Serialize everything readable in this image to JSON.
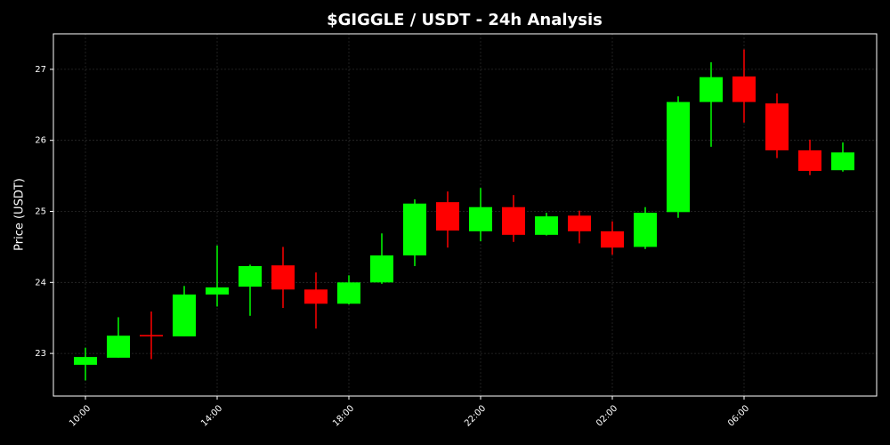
{
  "chart_data": {
    "type": "candlestick",
    "title": "$GIGGLE / USDT - 24h Analysis",
    "ylabel": "Price (USDT)",
    "categories": [
      "10:00",
      null,
      null,
      null,
      "14:00",
      null,
      null,
      null,
      "18:00",
      null,
      null,
      null,
      "22:00",
      null,
      null,
      null,
      "02:00",
      null,
      null,
      null,
      "06:00",
      null,
      null,
      null
    ],
    "open": [
      22.84,
      22.94,
      23.26,
      23.24,
      23.83,
      23.94,
      24.24,
      23.9,
      23.7,
      24.0,
      24.38,
      25.13,
      24.72,
      25.06,
      24.67,
      24.94,
      24.72,
      24.5,
      24.99,
      26.54,
      26.9,
      26.52,
      25.86,
      25.58
    ],
    "high": [
      23.08,
      23.51,
      23.59,
      23.95,
      24.52,
      24.25,
      24.5,
      24.14,
      24.1,
      24.69,
      25.17,
      25.28,
      25.33,
      25.23,
      24.98,
      25.01,
      24.86,
      25.06,
      26.62,
      27.1,
      27.28,
      26.66,
      26.01,
      25.97
    ],
    "low": [
      22.62,
      22.94,
      22.92,
      23.24,
      23.66,
      23.53,
      23.64,
      23.35,
      23.69,
      23.98,
      24.23,
      24.49,
      24.58,
      24.57,
      24.66,
      24.55,
      24.39,
      24.47,
      24.91,
      25.91,
      26.25,
      25.75,
      25.51,
      25.56
    ],
    "close": [
      22.95,
      23.25,
      23.24,
      23.83,
      23.93,
      24.23,
      23.9,
      23.7,
      24.0,
      24.38,
      25.11,
      24.73,
      25.06,
      24.67,
      24.93,
      24.72,
      24.49,
      24.98,
      26.54,
      26.89,
      26.54,
      25.86,
      25.57,
      25.83
    ],
    "up_color": "#00ff00",
    "down_color": "#ff0000",
    "ylim": [
      22.4,
      27.5
    ],
    "yticks": [
      23,
      24,
      25,
      26,
      27
    ],
    "grid": true
  }
}
